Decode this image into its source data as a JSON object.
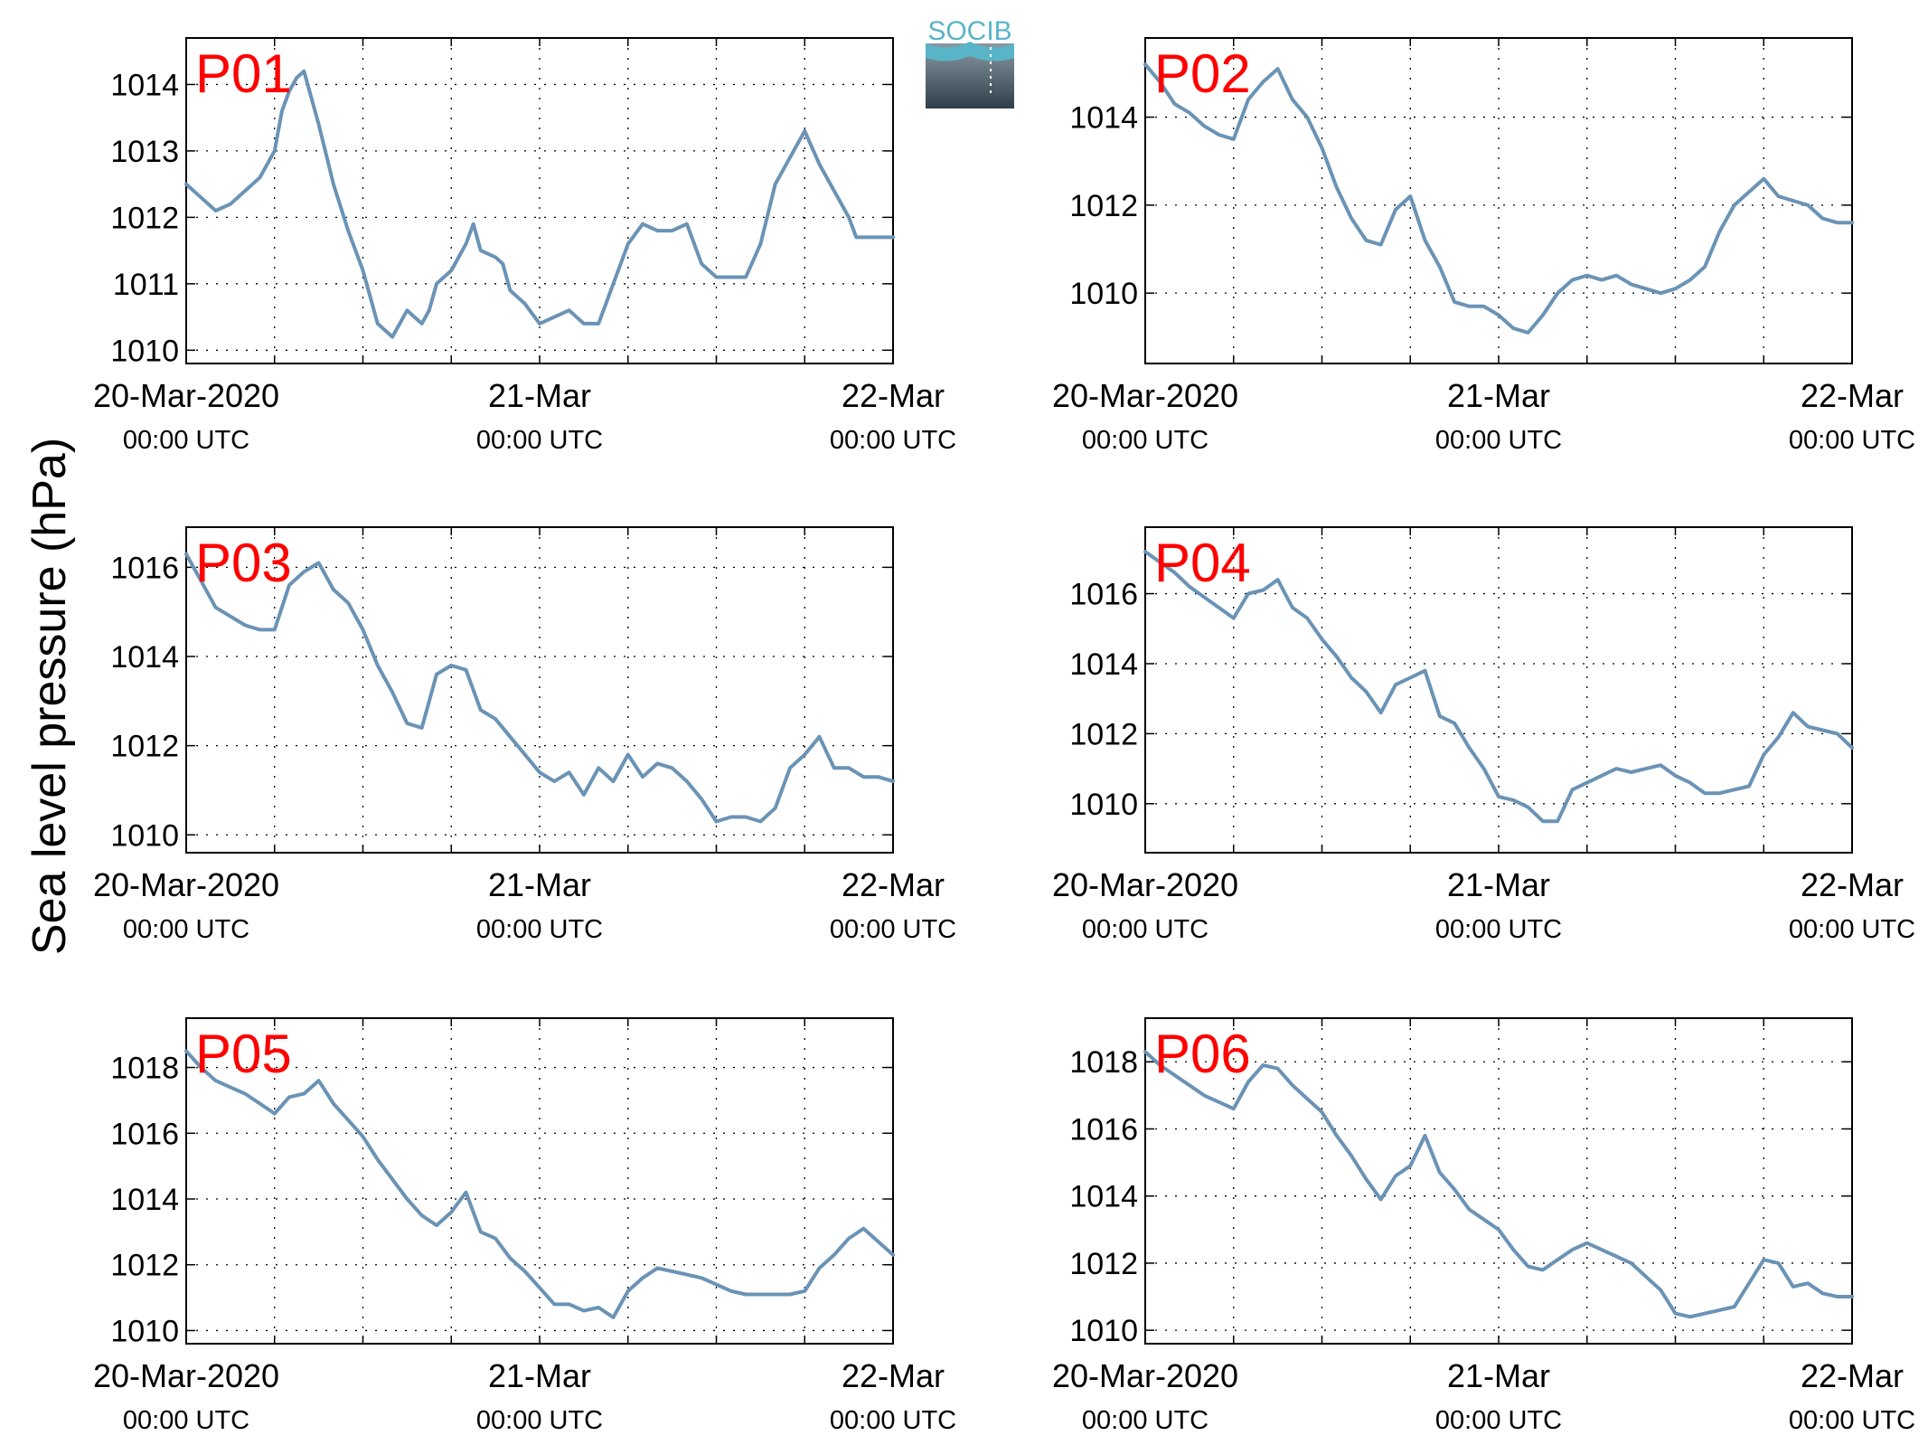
{
  "figure": {
    "ylabel": "Sea level pressure (hPa)",
    "logo": {
      "text": "SOCIB",
      "colors": [
        "#5ab4c8",
        "#7d8f99",
        "#2e3f4a"
      ]
    },
    "line_color": "#6a93b5",
    "label_color": "#ff0000"
  },
  "chart_data": [
    {
      "type": "line",
      "name": "P01",
      "label": "P01",
      "x_ticks": [
        "20-Mar-2020|00:00 UTC",
        "21-Mar|00:00 UTC",
        "22-Mar|00:00 UTC"
      ],
      "x_unit": "hours since 20-Mar-2020 00:00 UTC",
      "xlim": [
        0,
        48
      ],
      "ylim": [
        1009.8,
        1014.7
      ],
      "yticks": [
        1010,
        1011,
        1012,
        1013,
        1014
      ],
      "grid": true,
      "x": [
        0,
        1,
        2,
        3,
        4,
        5,
        6,
        6.5,
        7,
        7.5,
        8,
        9,
        10,
        11,
        12,
        13,
        14,
        15,
        15.5,
        16,
        16.5,
        17,
        18,
        19,
        19.5,
        20,
        21,
        21.5,
        22,
        23,
        24,
        25,
        26,
        27,
        28,
        29,
        30,
        31,
        32,
        33,
        34,
        35,
        36,
        37,
        38,
        39,
        40,
        41,
        42,
        43,
        44,
        45,
        45.5,
        46,
        47,
        48
      ],
      "values": [
        1012.5,
        1012.3,
        1012.1,
        1012.2,
        1012.4,
        1012.6,
        1013.0,
        1013.6,
        1013.9,
        1014.1,
        1014.2,
        1013.4,
        1012.5,
        1011.8,
        1011.2,
        1010.4,
        1010.2,
        1010.6,
        1010.5,
        1010.4,
        1010.6,
        1011.0,
        1011.2,
        1011.6,
        1011.9,
        1011.5,
        1011.4,
        1011.3,
        1010.9,
        1010.7,
        1010.4,
        1010.5,
        1010.6,
        1010.4,
        1010.4,
        1011.0,
        1011.6,
        1011.9,
        1011.8,
        1011.8,
        1011.9,
        1011.3,
        1011.1,
        1011.1,
        1011.1,
        1011.6,
        1012.5,
        1012.9,
        1013.3,
        1012.8,
        1012.4,
        1012.0,
        1011.7,
        1011.7,
        1011.7,
        1011.7
      ]
    },
    {
      "type": "line",
      "name": "P02",
      "label": "P02",
      "x_ticks": [
        "20-Mar-2020|00:00 UTC",
        "21-Mar|00:00 UTC",
        "22-Mar|00:00 UTC"
      ],
      "x_unit": "hours since 20-Mar-2020 00:00 UTC",
      "xlim": [
        0,
        48
      ],
      "ylim": [
        1008.4,
        1015.8
      ],
      "yticks": [
        1010,
        1012,
        1014
      ],
      "grid": true,
      "x": [
        0,
        1,
        2,
        3,
        4,
        5,
        6,
        7,
        8,
        9,
        10,
        11,
        12,
        13,
        14,
        15,
        16,
        17,
        18,
        19,
        20,
        21,
        22,
        23,
        24,
        25,
        26,
        27,
        28,
        29,
        30,
        31,
        32,
        33,
        34,
        35,
        36,
        37,
        38,
        39,
        40,
        41,
        42,
        43,
        44,
        45,
        46,
        47,
        48
      ],
      "values": [
        1015.2,
        1014.8,
        1014.3,
        1014.1,
        1013.8,
        1013.6,
        1013.5,
        1014.4,
        1014.8,
        1015.1,
        1014.4,
        1014.0,
        1013.3,
        1012.4,
        1011.7,
        1011.2,
        1011.1,
        1011.9,
        1012.2,
        1011.2,
        1010.6,
        1009.8,
        1009.7,
        1009.7,
        1009.5,
        1009.2,
        1009.1,
        1009.5,
        1010.0,
        1010.3,
        1010.4,
        1010.3,
        1010.4,
        1010.2,
        1010.1,
        1010.0,
        1010.1,
        1010.3,
        1010.6,
        1011.4,
        1012.0,
        1012.3,
        1012.6,
        1012.2,
        1012.1,
        1012.0,
        1011.7,
        1011.6,
        1011.6
      ]
    },
    {
      "type": "line",
      "name": "P03",
      "label": "P03",
      "x_ticks": [
        "20-Mar-2020|00:00 UTC",
        "21-Mar|00:00 UTC",
        "22-Mar|00:00 UTC"
      ],
      "x_unit": "hours since 20-Mar-2020 00:00 UTC",
      "xlim": [
        0,
        48
      ],
      "ylim": [
        1009.6,
        1016.9
      ],
      "yticks": [
        1010,
        1012,
        1014,
        1016
      ],
      "grid": true,
      "x": [
        0,
        1,
        2,
        3,
        4,
        5,
        6,
        7,
        8,
        9,
        10,
        11,
        12,
        13,
        14,
        15,
        16,
        17,
        18,
        19,
        20,
        21,
        22,
        23,
        24,
        25,
        26,
        27,
        28,
        29,
        30,
        31,
        32,
        33,
        34,
        35,
        36,
        37,
        38,
        39,
        40,
        41,
        42,
        43,
        44,
        45,
        46,
        47,
        48
      ],
      "values": [
        1016.3,
        1015.7,
        1015.1,
        1014.9,
        1014.7,
        1014.6,
        1014.6,
        1015.6,
        1015.9,
        1016.1,
        1015.5,
        1015.2,
        1014.6,
        1013.8,
        1013.2,
        1012.5,
        1012.4,
        1013.6,
        1013.8,
        1013.7,
        1012.8,
        1012.6,
        1012.2,
        1011.8,
        1011.4,
        1011.2,
        1011.4,
        1010.9,
        1011.5,
        1011.2,
        1011.8,
        1011.3,
        1011.6,
        1011.5,
        1011.2,
        1010.8,
        1010.3,
        1010.4,
        1010.4,
        1010.3,
        1010.6,
        1011.5,
        1011.8,
        1012.2,
        1011.5,
        1011.5,
        1011.3,
        1011.3,
        1011.2
      ]
    },
    {
      "type": "line",
      "name": "P04",
      "label": "P04",
      "x_ticks": [
        "20-Mar-2020|00:00 UTC",
        "21-Mar|00:00 UTC",
        "22-Mar|00:00 UTC"
      ],
      "x_unit": "hours since 20-Mar-2020 00:00 UTC",
      "xlim": [
        0,
        48
      ],
      "ylim": [
        1008.6,
        1017.9
      ],
      "yticks": [
        1010,
        1012,
        1014,
        1016
      ],
      "grid": true,
      "x": [
        0,
        1,
        2,
        3,
        4,
        5,
        6,
        7,
        8,
        9,
        10,
        11,
        12,
        13,
        14,
        15,
        16,
        17,
        18,
        19,
        20,
        21,
        22,
        23,
        24,
        25,
        26,
        27,
        28,
        29,
        30,
        31,
        32,
        33,
        34,
        35,
        36,
        37,
        38,
        39,
        40,
        41,
        42,
        43,
        44,
        45,
        46,
        47,
        48
      ],
      "values": [
        1017.2,
        1016.9,
        1016.6,
        1016.2,
        1015.9,
        1015.6,
        1015.3,
        1016.0,
        1016.1,
        1016.4,
        1015.6,
        1015.3,
        1014.7,
        1014.2,
        1013.6,
        1013.2,
        1012.6,
        1013.4,
        1013.6,
        1013.8,
        1012.5,
        1012.3,
        1011.6,
        1011.0,
        1010.2,
        1010.1,
        1009.9,
        1009.5,
        1009.5,
        1010.4,
        1010.6,
        1010.8,
        1011.0,
        1010.9,
        1011.0,
        1011.1,
        1010.8,
        1010.6,
        1010.3,
        1010.3,
        1010.4,
        1010.5,
        1011.4,
        1011.9,
        1012.6,
        1012.2,
        1012.1,
        1012.0,
        1011.6
      ]
    },
    {
      "type": "line",
      "name": "P05",
      "label": "P05",
      "x_ticks": [
        "20-Mar-2020|00:00 UTC",
        "21-Mar|00:00 UTC",
        "22-Mar|00:00 UTC"
      ],
      "x_unit": "hours since 20-Mar-2020 00:00 UTC",
      "xlim": [
        0,
        48
      ],
      "ylim": [
        1009.6,
        1019.5
      ],
      "yticks": [
        1010,
        1012,
        1014,
        1016,
        1018
      ],
      "grid": true,
      "x": [
        0,
        1,
        2,
        3,
        4,
        5,
        6,
        7,
        8,
        9,
        10,
        11,
        12,
        13,
        14,
        15,
        16,
        17,
        18,
        19,
        20,
        21,
        22,
        23,
        24,
        25,
        26,
        27,
        28,
        29,
        30,
        31,
        32,
        33,
        34,
        35,
        36,
        37,
        38,
        39,
        40,
        41,
        42,
        43,
        44,
        45,
        46,
        47,
        48
      ],
      "values": [
        1018.5,
        1018.0,
        1017.6,
        1017.4,
        1017.2,
        1016.9,
        1016.6,
        1017.1,
        1017.2,
        1017.6,
        1016.9,
        1016.4,
        1015.9,
        1015.2,
        1014.6,
        1014.0,
        1013.5,
        1013.2,
        1013.6,
        1014.2,
        1013.0,
        1012.8,
        1012.2,
        1011.8,
        1011.3,
        1010.8,
        1010.8,
        1010.6,
        1010.7,
        1010.4,
        1011.2,
        1011.6,
        1011.9,
        1011.8,
        1011.7,
        1011.6,
        1011.4,
        1011.2,
        1011.1,
        1011.1,
        1011.1,
        1011.1,
        1011.2,
        1011.9,
        1012.3,
        1012.8,
        1013.1,
        1012.7,
        1012.3
      ]
    },
    {
      "type": "line",
      "name": "P06",
      "label": "P06",
      "x_ticks": [
        "20-Mar-2020|00:00 UTC",
        "21-Mar|00:00 UTC",
        "22-Mar|00:00 UTC"
      ],
      "x_unit": "hours since 20-Mar-2020 00:00 UTC",
      "xlim": [
        0,
        48
      ],
      "ylim": [
        1009.6,
        1019.3
      ],
      "yticks": [
        1010,
        1012,
        1014,
        1016,
        1018
      ],
      "grid": true,
      "x": [
        0,
        1,
        2,
        3,
        4,
        5,
        6,
        7,
        8,
        9,
        10,
        11,
        12,
        13,
        14,
        15,
        16,
        17,
        18,
        19,
        20,
        21,
        22,
        23,
        24,
        25,
        26,
        27,
        28,
        29,
        30,
        31,
        32,
        33,
        34,
        35,
        36,
        37,
        38,
        39,
        40,
        41,
        42,
        43,
        44,
        45,
        46,
        47,
        48
      ],
      "values": [
        1018.3,
        1017.9,
        1017.6,
        1017.3,
        1017.0,
        1016.8,
        1016.6,
        1017.4,
        1017.9,
        1017.8,
        1017.3,
        1016.9,
        1016.5,
        1015.8,
        1015.2,
        1014.5,
        1013.9,
        1014.6,
        1014.9,
        1015.8,
        1014.7,
        1014.2,
        1013.6,
        1013.3,
        1013.0,
        1012.4,
        1011.9,
        1011.8,
        1012.1,
        1012.4,
        1012.6,
        1012.4,
        1012.2,
        1012.0,
        1011.6,
        1011.2,
        1010.5,
        1010.4,
        1010.5,
        1010.6,
        1010.7,
        1011.4,
        1012.1,
        1012.0,
        1011.3,
        1011.4,
        1011.1,
        1011.0,
        1011.0
      ]
    }
  ]
}
